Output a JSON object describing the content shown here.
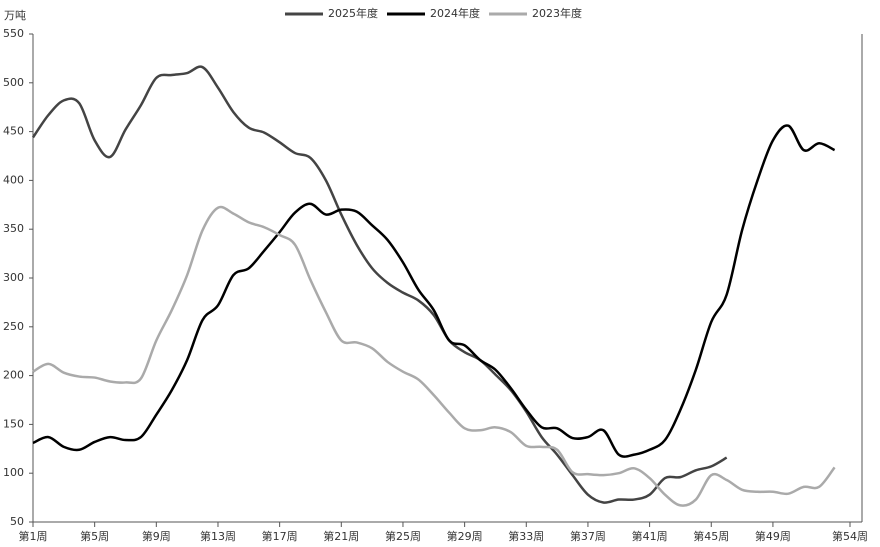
{
  "chart_data": {
    "type": "line",
    "y_label": "万吨",
    "x": [
      1,
      2,
      3,
      4,
      5,
      6,
      7,
      8,
      9,
      10,
      11,
      12,
      13,
      14,
      15,
      16,
      17,
      18,
      19,
      20,
      21,
      22,
      23,
      24,
      25,
      26,
      27,
      28,
      29,
      30,
      31,
      32,
      33,
      34,
      35,
      36,
      37,
      38,
      39,
      40,
      41,
      42,
      43,
      44,
      45,
      46,
      47,
      48,
      49,
      50,
      51,
      52,
      53
    ],
    "xlim": [
      1,
      54
    ],
    "xticks": [
      {
        "value": 1,
        "label": "第1周"
      },
      {
        "value": 5,
        "label": "第5周"
      },
      {
        "value": 9,
        "label": "第9周"
      },
      {
        "value": 13,
        "label": "第13周"
      },
      {
        "value": 17,
        "label": "第17周"
      },
      {
        "value": 21,
        "label": "第21周"
      },
      {
        "value": 25,
        "label": "第25周"
      },
      {
        "value": 29,
        "label": "第29周"
      },
      {
        "value": 33,
        "label": "第33周"
      },
      {
        "value": 37,
        "label": "第37周"
      },
      {
        "value": 41,
        "label": "第41周"
      },
      {
        "value": 45,
        "label": "第45周"
      },
      {
        "value": 49,
        "label": "第49周"
      },
      {
        "value": 54,
        "label": "第54周"
      }
    ],
    "ylim": [
      50,
      550
    ],
    "yticks": [
      50,
      100,
      150,
      200,
      250,
      300,
      350,
      400,
      450,
      500,
      550
    ],
    "grid": false,
    "legend": "top",
    "series": [
      {
        "name": "2025年度",
        "color": "#444444",
        "values": [
          444,
          467,
          482,
          479,
          441,
          424,
          452,
          477,
          505,
          508,
          510,
          516,
          495,
          470,
          454,
          449,
          439,
          428,
          423,
          400,
          365,
          334,
          310,
          295,
          285,
          277,
          262,
          236,
          224,
          216,
          201,
          185,
          163,
          137,
          119,
          98,
          78,
          70,
          73,
          73,
          78,
          95,
          96,
          103,
          107,
          116,
          null,
          null,
          null,
          null,
          null,
          null,
          null
        ]
      },
      {
        "name": "2024年度",
        "color": "#000000",
        "values": [
          131,
          137,
          127,
          124,
          132,
          137,
          134,
          137,
          160,
          185,
          216,
          257,
          272,
          303,
          310,
          328,
          347,
          367,
          376,
          365,
          370,
          368,
          354,
          339,
          316,
          288,
          267,
          236,
          231,
          216,
          206,
          187,
          165,
          147,
          146,
          136,
          137,
          144,
          119,
          119,
          124,
          134,
          165,
          206,
          255,
          283,
          349,
          400,
          441,
          456,
          431,
          438,
          431
        ]
      },
      {
        "name": "2023年度",
        "color": "#aaaaaa",
        "values": [
          204,
          212,
          203,
          199,
          198,
          194,
          193,
          197,
          236,
          267,
          303,
          349,
          372,
          366,
          357,
          352,
          344,
          334,
          298,
          265,
          236,
          234,
          228,
          214,
          204,
          196,
          180,
          162,
          146,
          144,
          147,
          142,
          128,
          127,
          124,
          101,
          99,
          98,
          100,
          105,
          95,
          78,
          67,
          73,
          98,
          93,
          83,
          81,
          81,
          79,
          86,
          86,
          106
        ]
      }
    ]
  }
}
